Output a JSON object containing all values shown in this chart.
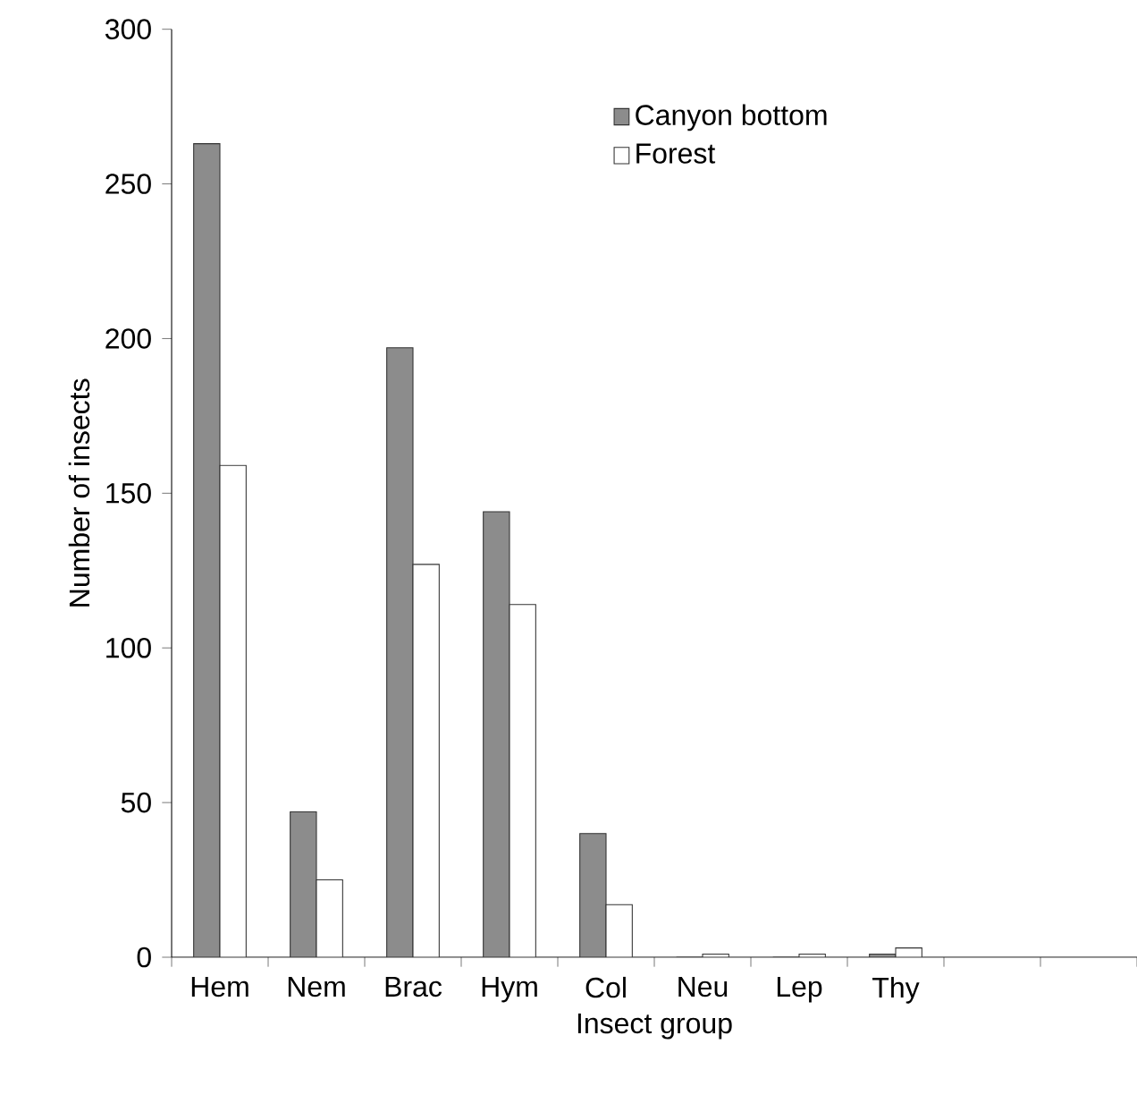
{
  "chart_data": {
    "type": "bar",
    "xlabel": "Insect group",
    "ylabel": "Number of insects",
    "categories": [
      "Hem",
      "Nem",
      "Brac",
      "Hym",
      "Col",
      "Neu",
      "Lep",
      "Thy",
      null,
      null
    ],
    "series": [
      {
        "name": "Canyon bottom",
        "color": "#8c8c8c",
        "values": [
          263,
          47,
          197,
          144,
          40,
          0,
          0,
          1,
          null,
          null
        ]
      },
      {
        "name": "Forest",
        "color": "#ffffff",
        "values": [
          159,
          25,
          127,
          114,
          17,
          1,
          1,
          3,
          null,
          null
        ]
      }
    ],
    "ylim": [
      0,
      300
    ],
    "yticks": [
      0,
      50,
      100,
      150,
      200,
      250,
      300
    ],
    "grid": false,
    "legend": "top right"
  }
}
